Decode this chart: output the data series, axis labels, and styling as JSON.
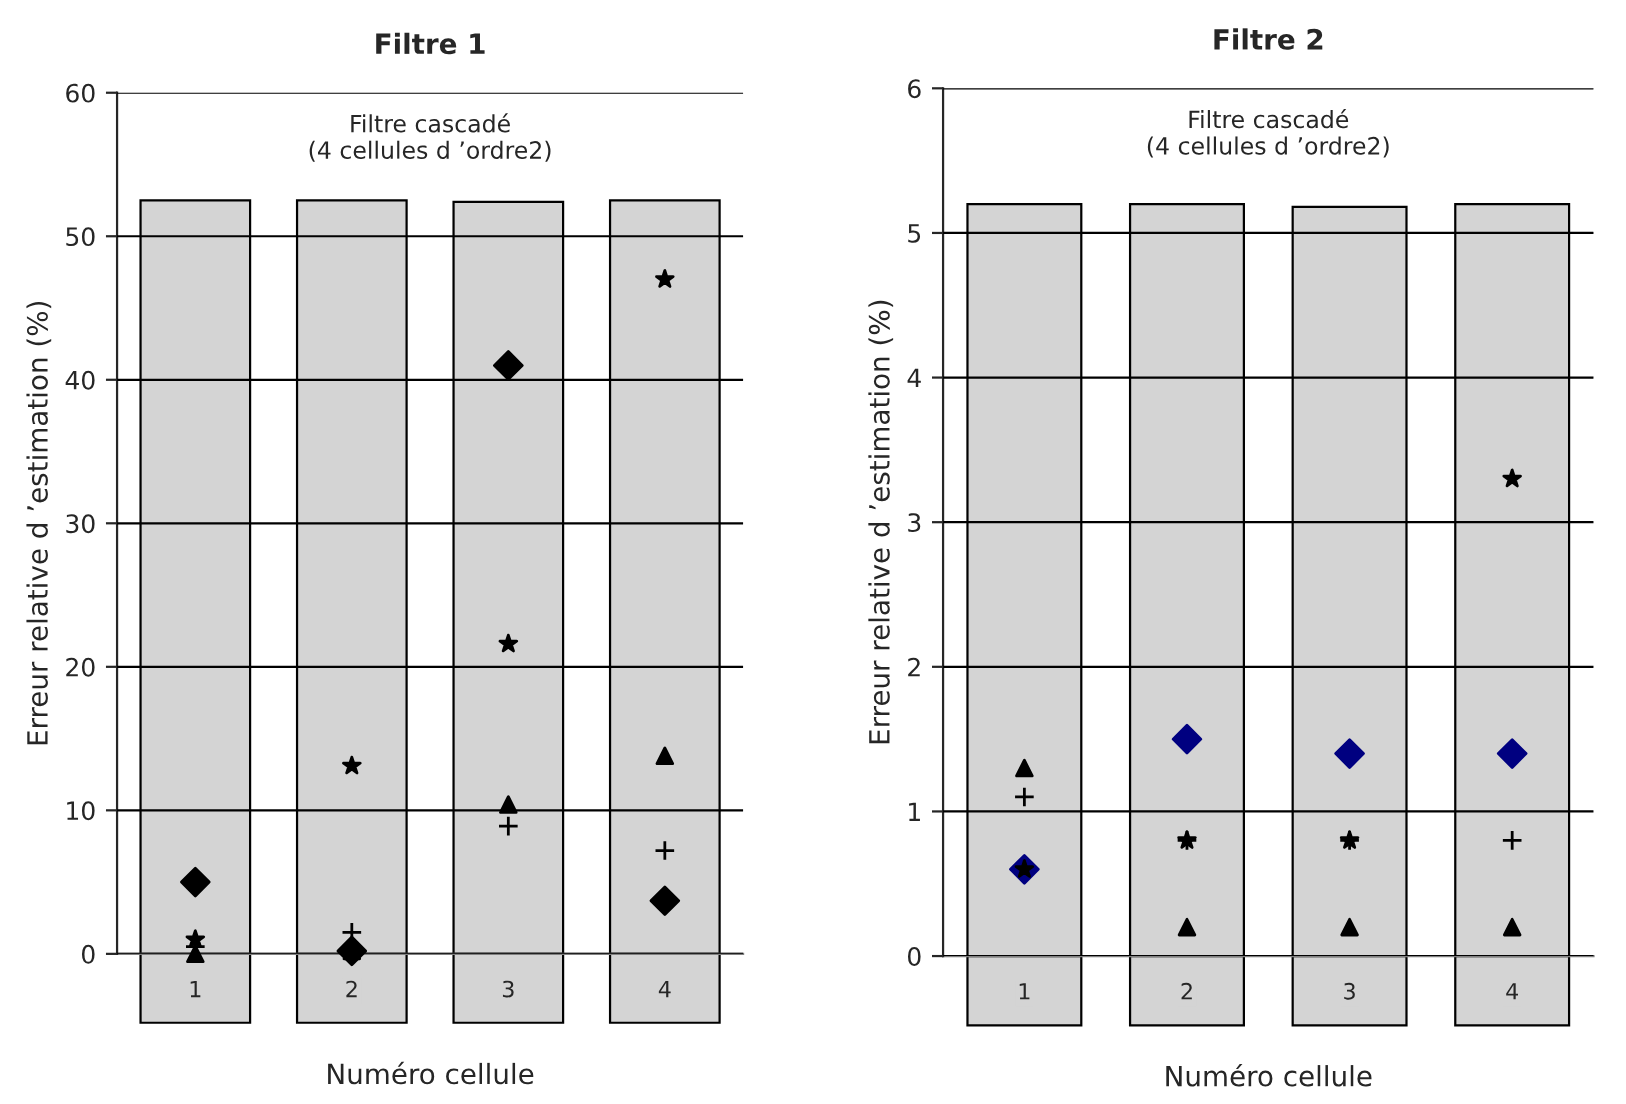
{
  "chart_data": [
    {
      "type": "scatter",
      "title": "Filtre 1",
      "xlabel": "Numéro cellule",
      "ylabel": "Erreur relative d ’estimation (%)",
      "annotations": [
        "Filtre cascadé\n(4 cellules d ’ordre2)"
      ],
      "categories": [
        "1",
        "2",
        "3",
        "4"
      ],
      "series": [
        {
          "type": "bar",
          "color": "#d4d4d4",
          "values": [
            52.5,
            52.5,
            52.4,
            52.5
          ]
        },
        {
          "color": "#000000",
          "marker": "diamond",
          "values": [
            5,
            0.2,
            41,
            3.7
          ]
        },
        {
          "color": "#000000",
          "marker": "star",
          "values": [
            1,
            13.1,
            21.6,
            47
          ]
        },
        {
          "color": "#000000",
          "marker": "triangle",
          "values": [
            0,
            0.2,
            10.4,
            13.8
          ]
        },
        {
          "color": "#000000",
          "marker": "cross",
          "values": [
            0.5,
            1.5,
            8.9,
            7.2
          ]
        }
      ],
      "ylim": [
        0,
        60
      ],
      "yticks": [
        0,
        10,
        20,
        30,
        40,
        50,
        60
      ],
      "grid": "y",
      "legend": false
    },
    {
      "type": "scatter",
      "title": "Filtre 2",
      "xlabel": "Numéro cellule",
      "ylabel": "Erreur relative d ’estimation (%)",
      "annotations": [
        "Filtre cascadé\n(4 cellules d ’ordre2)"
      ],
      "categories": [
        "1",
        "2",
        "3",
        "4"
      ],
      "series": [
        {
          "type": "bar",
          "color": "#d4d4d4",
          "values": [
            5.2,
            5.2,
            5.18,
            5.2
          ]
        },
        {
          "color": "#000080",
          "marker": "diamond",
          "values": [
            0.6,
            1.5,
            1.4,
            1.4
          ]
        },
        {
          "color": "#000000",
          "marker": "star",
          "values": [
            0.6,
            0.8,
            0.8,
            3.3
          ]
        },
        {
          "color": "#000000",
          "marker": "triangle",
          "values": [
            1.3,
            0.2,
            0.2,
            0.2
          ]
        },
        {
          "color": "#000000",
          "marker": "cross",
          "values": [
            1.1,
            0.8,
            0.8,
            0.8
          ]
        }
      ],
      "ylim": [
        0,
        6
      ],
      "yticks": [
        0,
        1,
        2,
        3,
        4,
        5,
        6
      ],
      "grid": "y",
      "legend": false
    }
  ]
}
